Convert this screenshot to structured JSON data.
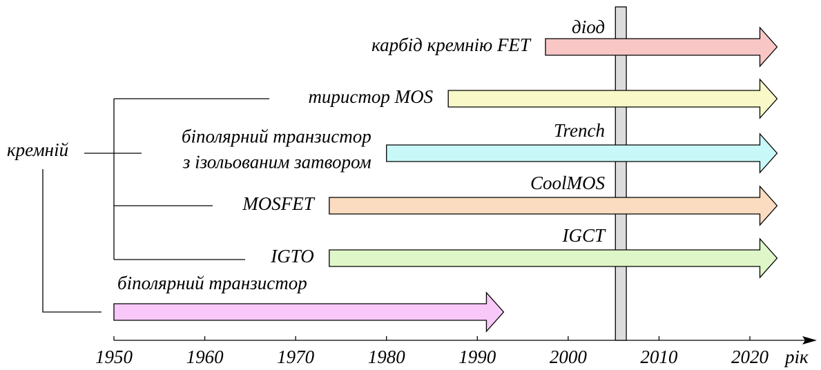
{
  "axis": {
    "label": "рік",
    "lim": [
      1950,
      2020
    ],
    "ticks": [
      1950,
      1960,
      1970,
      1980,
      1990,
      2000,
      2010,
      2020
    ]
  },
  "root": "кремній",
  "marker": {
    "start": 2005.2,
    "end": 2006.4
  },
  "arrows": [
    {
      "label": [
        "карбід кремнію FET"
      ],
      "note": "діод",
      "start": 1997.5,
      "end": 2023,
      "color": "#f9c6c6"
    },
    {
      "label": [
        "тиристор MOS"
      ],
      "start": 1986.8,
      "end": 2023,
      "color": "#f8f8c8"
    },
    {
      "label": [
        "біполярний транзистор",
        "з ізольованим затвором"
      ],
      "note": "Trench",
      "start": 1980,
      "end": 2023,
      "color": "#c8f8f8"
    },
    {
      "label": [
        "MOSFET"
      ],
      "note": "CoolMOS",
      "start": 1973.7,
      "end": 2023,
      "color": "#fbdcc0"
    },
    {
      "label": [
        "IGTO"
      ],
      "note": "IGCT",
      "start": 1973.7,
      "end": 2023,
      "color": "#dff7c8"
    },
    {
      "label": [
        "біполярний транзистор"
      ],
      "start": 1950,
      "end": 1992.9,
      "color": "#f8c8f8"
    }
  ]
}
